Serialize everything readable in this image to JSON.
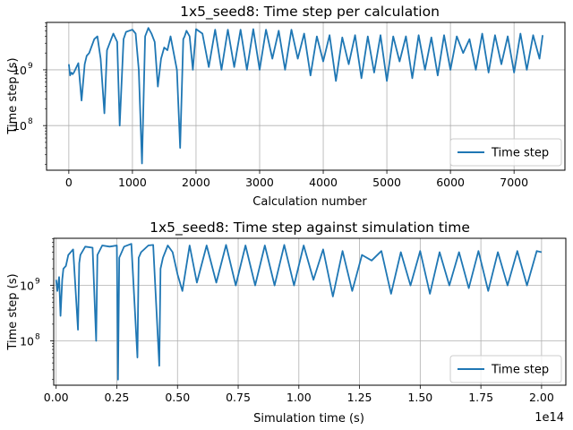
{
  "chart_data": [
    {
      "type": "line",
      "title": "1x5_seed8: Time step per calculation",
      "xlabel": "Calculation number",
      "ylabel": "Time step (s)",
      "yscale": "log",
      "xlim": [
        -350,
        7800
      ],
      "ylim_log10": [
        7.2,
        9.85
      ],
      "grid": true,
      "legend_position": "lower right",
      "x_ticks": [
        0,
        1000,
        2000,
        3000,
        4000,
        5000,
        6000,
        7000
      ],
      "x_tick_labels": [
        "0",
        "1000",
        "2000",
        "3000",
        "4000",
        "5000",
        "6000",
        "7000"
      ],
      "y_ticks_log10": [
        8,
        9
      ],
      "y_tick_labels": [
        {
          "base": "10",
          "exp": "8"
        },
        {
          "base": "10",
          "exp": "9"
        }
      ],
      "series": [
        {
          "name": "Time step",
          "color": "#1f77b4",
          "x": [
            0,
            20,
            40,
            60,
            80,
            100,
            150,
            200,
            250,
            280,
            320,
            400,
            450,
            500,
            560,
            600,
            650,
            700,
            760,
            800,
            860,
            900,
            950,
            1000,
            1050,
            1100,
            1150,
            1200,
            1250,
            1300,
            1350,
            1400,
            1450,
            1500,
            1550,
            1600,
            1700,
            1750,
            1800,
            1820,
            1850,
            1900,
            1950,
            2000,
            2100,
            2200,
            2300,
            2400,
            2500,
            2600,
            2700,
            2800,
            2900,
            3000,
            3100,
            3200,
            3300,
            3400,
            3500,
            3600,
            3700,
            3800,
            3900,
            4000,
            4100,
            4200,
            4300,
            4400,
            4500,
            4600,
            4700,
            4800,
            4900,
            5000,
            5100,
            5200,
            5300,
            5400,
            5500,
            5600,
            5700,
            5800,
            5900,
            6000,
            6100,
            6200,
            6300,
            6400,
            6500,
            6600,
            6700,
            6800,
            6900,
            7000,
            7100,
            7200,
            7300,
            7400,
            7450
          ],
          "log10_values": [
            9.1,
            8.9,
            8.95,
            8.92,
            8.95,
            9.0,
            9.12,
            8.45,
            9.1,
            9.25,
            9.3,
            9.55,
            9.6,
            9.2,
            8.22,
            9.35,
            9.5,
            9.65,
            9.5,
            8.0,
            9.55,
            9.68,
            9.7,
            9.72,
            9.65,
            9.0,
            7.32,
            9.6,
            9.75,
            9.65,
            9.5,
            8.7,
            9.2,
            9.4,
            9.35,
            9.6,
            9.0,
            7.6,
            9.55,
            9.6,
            9.7,
            9.6,
            9.0,
            9.73,
            9.65,
            9.05,
            9.72,
            9.0,
            9.72,
            9.05,
            9.72,
            9.0,
            9.73,
            9.0,
            9.72,
            9.2,
            9.7,
            9.0,
            9.72,
            9.2,
            9.65,
            8.9,
            9.6,
            9.15,
            9.62,
            8.8,
            9.58,
            9.1,
            9.62,
            8.85,
            9.6,
            8.95,
            9.62,
            8.8,
            9.6,
            9.15,
            9.6,
            8.85,
            9.62,
            9.0,
            9.58,
            8.9,
            9.62,
            9.0,
            9.6,
            9.3,
            9.55,
            9.0,
            9.65,
            8.95,
            9.62,
            9.1,
            9.6,
            8.95,
            9.65,
            9.0,
            9.62,
            9.2,
            9.62
          ]
        }
      ]
    },
    {
      "type": "line",
      "title": "1x5_seed8: Time step against simulation time",
      "xlabel": "Simulation time (s)",
      "ylabel": "Time step (s)",
      "yscale": "log",
      "x_offset_label": "1e14",
      "xlim": [
        -0.01,
        2.1
      ],
      "ylim_log10": [
        7.2,
        9.85
      ],
      "grid": true,
      "legend_position": "lower right",
      "x_ticks": [
        0,
        0.25,
        0.5,
        0.75,
        1.0,
        1.25,
        1.5,
        1.75,
        2.0
      ],
      "x_tick_labels": [
        "0.00",
        "0.25",
        "0.50",
        "0.75",
        "1.00",
        "1.25",
        "1.50",
        "1.75",
        "2.00"
      ],
      "y_ticks_log10": [
        8,
        9
      ],
      "y_tick_labels": [
        {
          "base": "10",
          "exp": "8"
        },
        {
          "base": "10",
          "exp": "9"
        }
      ],
      "series": [
        {
          "name": "Time step",
          "color": "#1f77b4",
          "x": [
            0.0,
            0.005,
            0.012,
            0.018,
            0.025,
            0.03,
            0.04,
            0.05,
            0.07,
            0.09,
            0.095,
            0.1,
            0.12,
            0.15,
            0.165,
            0.17,
            0.19,
            0.22,
            0.25,
            0.255,
            0.26,
            0.28,
            0.31,
            0.335,
            0.34,
            0.35,
            0.38,
            0.4,
            0.425,
            0.43,
            0.44,
            0.46,
            0.48,
            0.5,
            0.52,
            0.55,
            0.58,
            0.62,
            0.66,
            0.7,
            0.74,
            0.78,
            0.82,
            0.86,
            0.9,
            0.94,
            0.98,
            1.02,
            1.06,
            1.1,
            1.14,
            1.18,
            1.22,
            1.26,
            1.3,
            1.34,
            1.38,
            1.42,
            1.46,
            1.5,
            1.54,
            1.58,
            1.62,
            1.66,
            1.7,
            1.74,
            1.78,
            1.82,
            1.86,
            1.9,
            1.94,
            1.98,
            2.0
          ],
          "log10_values": [
            9.1,
            8.9,
            9.15,
            8.45,
            9.1,
            9.3,
            9.35,
            9.55,
            9.65,
            8.2,
            9.4,
            9.55,
            9.7,
            9.68,
            8.0,
            9.55,
            9.72,
            9.7,
            9.72,
            7.3,
            9.5,
            9.7,
            9.75,
            7.7,
            9.5,
            9.6,
            9.72,
            9.73,
            7.55,
            9.3,
            9.5,
            9.72,
            9.6,
            9.2,
            8.9,
            9.72,
            9.05,
            9.72,
            9.05,
            9.73,
            9.0,
            9.72,
            9.0,
            9.72,
            9.0,
            9.73,
            9.0,
            9.72,
            9.1,
            9.65,
            8.8,
            9.62,
            8.9,
            9.55,
            9.45,
            9.62,
            8.85,
            9.6,
            9.0,
            9.62,
            8.85,
            9.6,
            9.0,
            9.6,
            8.95,
            9.62,
            8.9,
            9.6,
            9.0,
            9.62,
            9.0,
            9.62,
            9.6
          ]
        }
      ]
    }
  ]
}
